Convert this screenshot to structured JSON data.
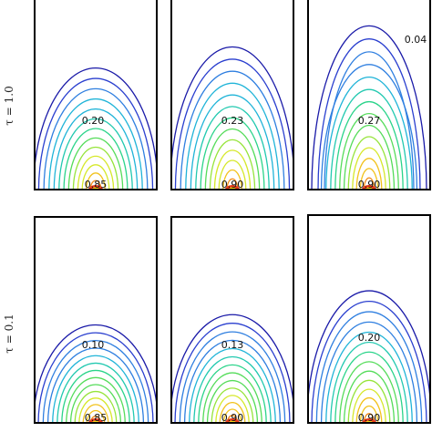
{
  "rows": [
    {
      "label": "τ = 1.0",
      "panels": [
        {
          "labels": {
            "top": "",
            "middle": "0.20",
            "bottom": "0.85"
          },
          "n_contours": 14,
          "peak": 0.85,
          "mode": "dome"
        },
        {
          "labels": {
            "top": "",
            "middle": "0.23",
            "bottom": "0.90"
          },
          "n_contours": 14,
          "peak": 0.9,
          "mode": "dome"
        },
        {
          "labels": {
            "top": "0.04",
            "middle": "0.27",
            "bottom": "0.90"
          },
          "n_contours": 15,
          "peak": 0.9,
          "mode": "wall"
        }
      ]
    },
    {
      "label": "τ = 0.1",
      "panels": [
        {
          "labels": {
            "top": "",
            "middle": "0.10",
            "bottom": "0.85"
          },
          "n_contours": 15,
          "peak": 0.85,
          "mode": "dome"
        },
        {
          "labels": {
            "top": "",
            "middle": "0.13",
            "bottom": "0.90"
          },
          "n_contours": 15,
          "peak": 0.9,
          "mode": "dome"
        },
        {
          "labels": {
            "top": "",
            "middle": "0.20",
            "bottom": "0.90"
          },
          "n_contours": 15,
          "peak": 0.9,
          "mode": "dome"
        }
      ]
    }
  ],
  "colors": {
    "ramp": [
      "#1a1aa8",
      "#2a3fcf",
      "#2f7fe0",
      "#20b4d8",
      "#22c9b0",
      "#2bd48a",
      "#55dc5a",
      "#96e43a",
      "#d6e82a",
      "#f2c21c",
      "#f08a16",
      "#e0401a"
    ],
    "frame": "#000000"
  }
}
